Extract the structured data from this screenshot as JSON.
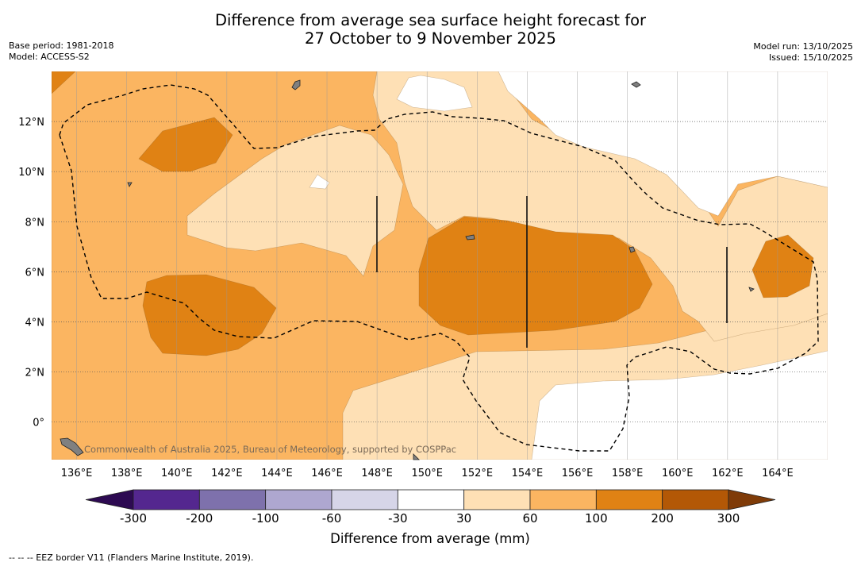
{
  "header": {
    "title_line1": "Difference from average sea surface height forecast for",
    "title_line2": "27 October to 9 November 2025",
    "base_period": "Base period: 1981-2018",
    "model": "Model: ACCESS-S2",
    "model_run": "Model run: 13/10/2025",
    "issued": "Issued: 15/10/2025"
  },
  "map": {
    "copyright": "Commonwealth of Australia 2025, Bureau of Meteorology, supported by COSPPac"
  },
  "footer": {
    "eez_note": "--  --  -- EEZ border V11 (Flanders Marine Institute, 2019)."
  },
  "colors": {
    "land": "#808080",
    "eez_line": "#000000",
    "grid": "#999999"
  },
  "chart_data": {
    "type": "heatmap",
    "title": "Difference from average sea surface height forecast for 27 October to 9 November 2025",
    "x_axis": {
      "unit": "longitude",
      "range": [
        135,
        166
      ],
      "ticks": [
        136,
        138,
        140,
        142,
        144,
        146,
        148,
        150,
        152,
        154,
        156,
        158,
        160,
        162,
        164
      ],
      "tick_labels": [
        "136°E",
        "138°E",
        "140°E",
        "142°E",
        "144°E",
        "146°E",
        "148°E",
        "150°E",
        "152°E",
        "154°E",
        "156°E",
        "158°E",
        "160°E",
        "162°E",
        "164°E"
      ]
    },
    "y_axis": {
      "unit": "latitude",
      "range": [
        -1.5,
        14
      ],
      "ticks": [
        0,
        2,
        4,
        6,
        8,
        10,
        12
      ],
      "tick_labels": [
        "0°",
        "2°N",
        "4°N",
        "6°N",
        "8°N",
        "10°N",
        "12°N"
      ]
    },
    "grid": true,
    "colorbar": {
      "label": "Difference from average (mm)",
      "tick_labels": [
        "-300",
        "-200",
        "-100",
        "-60",
        "-30",
        "30",
        "60",
        "100",
        "200",
        "300"
      ],
      "bins": [
        {
          "range": "< -300",
          "color": "#2d0a52"
        },
        {
          "range": "-300 to -200",
          "color": "#54278f"
        },
        {
          "range": "-200 to -100",
          "color": "#7e71ac"
        },
        {
          "range": "-100 to -60",
          "color": "#aea7d0"
        },
        {
          "range": "-60 to -30",
          "color": "#d6d5e8"
        },
        {
          "range": "-30 to 30",
          "color": "#ffffff"
        },
        {
          "range": "30 to 60",
          "color": "#fee0b5"
        },
        {
          "range": "60 to 100",
          "color": "#fbb561"
        },
        {
          "range": "100 to 200",
          "color": "#e08214"
        },
        {
          "range": "200 to 300",
          "color": "#b35806"
        },
        {
          "range": "> 300",
          "color": "#7f3b08"
        }
      ]
    },
    "regions": [
      {
        "name": "background",
        "level": "60 to 100"
      },
      {
        "name": "central-low-band",
        "level": "30 to 60"
      },
      {
        "name": "north-light-band",
        "level": "30 to 60"
      },
      {
        "name": "east-light-band",
        "level": "30 to 60"
      },
      {
        "name": "north-neutral",
        "level": "-30 to 30"
      },
      {
        "name": "south-neutral",
        "level": "-30 to 30"
      },
      {
        "name": "east-neutral",
        "level": "-30 to 30"
      },
      {
        "name": "central-high",
        "level": "100 to 200"
      },
      {
        "name": "west-high",
        "level": "100 to 200"
      },
      {
        "name": "northwest-high",
        "level": "100 to 200"
      },
      {
        "name": "east-high",
        "level": "100 to 200"
      }
    ]
  }
}
